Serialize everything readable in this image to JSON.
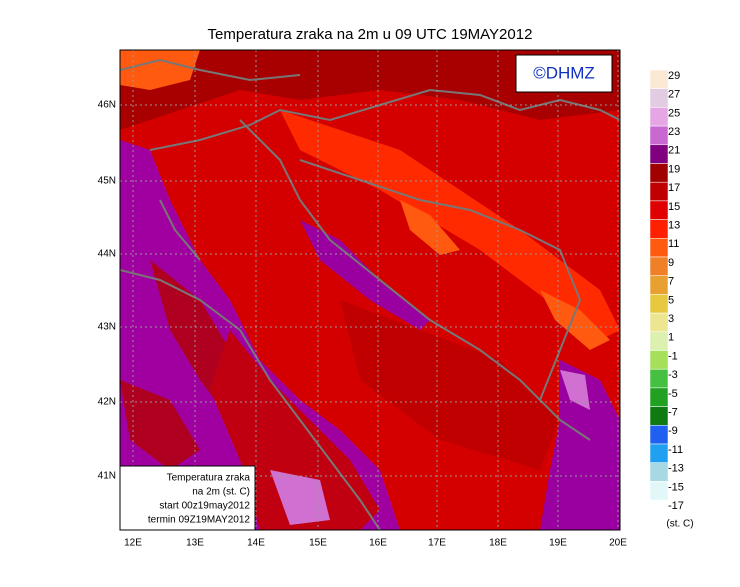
{
  "header": {
    "title": "Temperatura zraka na 2m u 09 UTC 19MAY2012",
    "logo": "©DHMZ"
  },
  "map": {
    "lon_labels": [
      "12E",
      "13E",
      "14E",
      "15E",
      "16E",
      "17E",
      "18E",
      "19E",
      "20E"
    ],
    "lat_labels": [
      "46N",
      "45N",
      "44N",
      "43N",
      "42N",
      "41N"
    ]
  },
  "info_box": {
    "lines": [
      "Temperatura zraka",
      "na 2m (st. C)",
      "start 00z19may2012",
      "termin 09Z19MAY2012"
    ]
  },
  "legend": {
    "values": [
      29,
      27,
      25,
      23,
      21,
      19,
      17,
      15,
      13,
      11,
      9,
      7,
      5,
      3,
      1,
      -1,
      -3,
      -5,
      -7,
      -9,
      -11,
      -13,
      -15,
      -17
    ],
    "colors": [
      "#fbe9d6",
      "#e2cce2",
      "#e6a6e6",
      "#c868d0",
      "#800080",
      "#a00000",
      "#c00000",
      "#e00000",
      "#ff2000",
      "#ff5a10",
      "#f08028",
      "#e8a030",
      "#e8c840",
      "#ece690",
      "#dcf0b0",
      "#a6e05a",
      "#46c040",
      "#22a022",
      "#0e7a10",
      "#2060f0",
      "#20a0f0",
      "#a8d8e4",
      "#e2f8f8",
      "#ffffff"
    ],
    "unit": "(st. C)"
  }
}
